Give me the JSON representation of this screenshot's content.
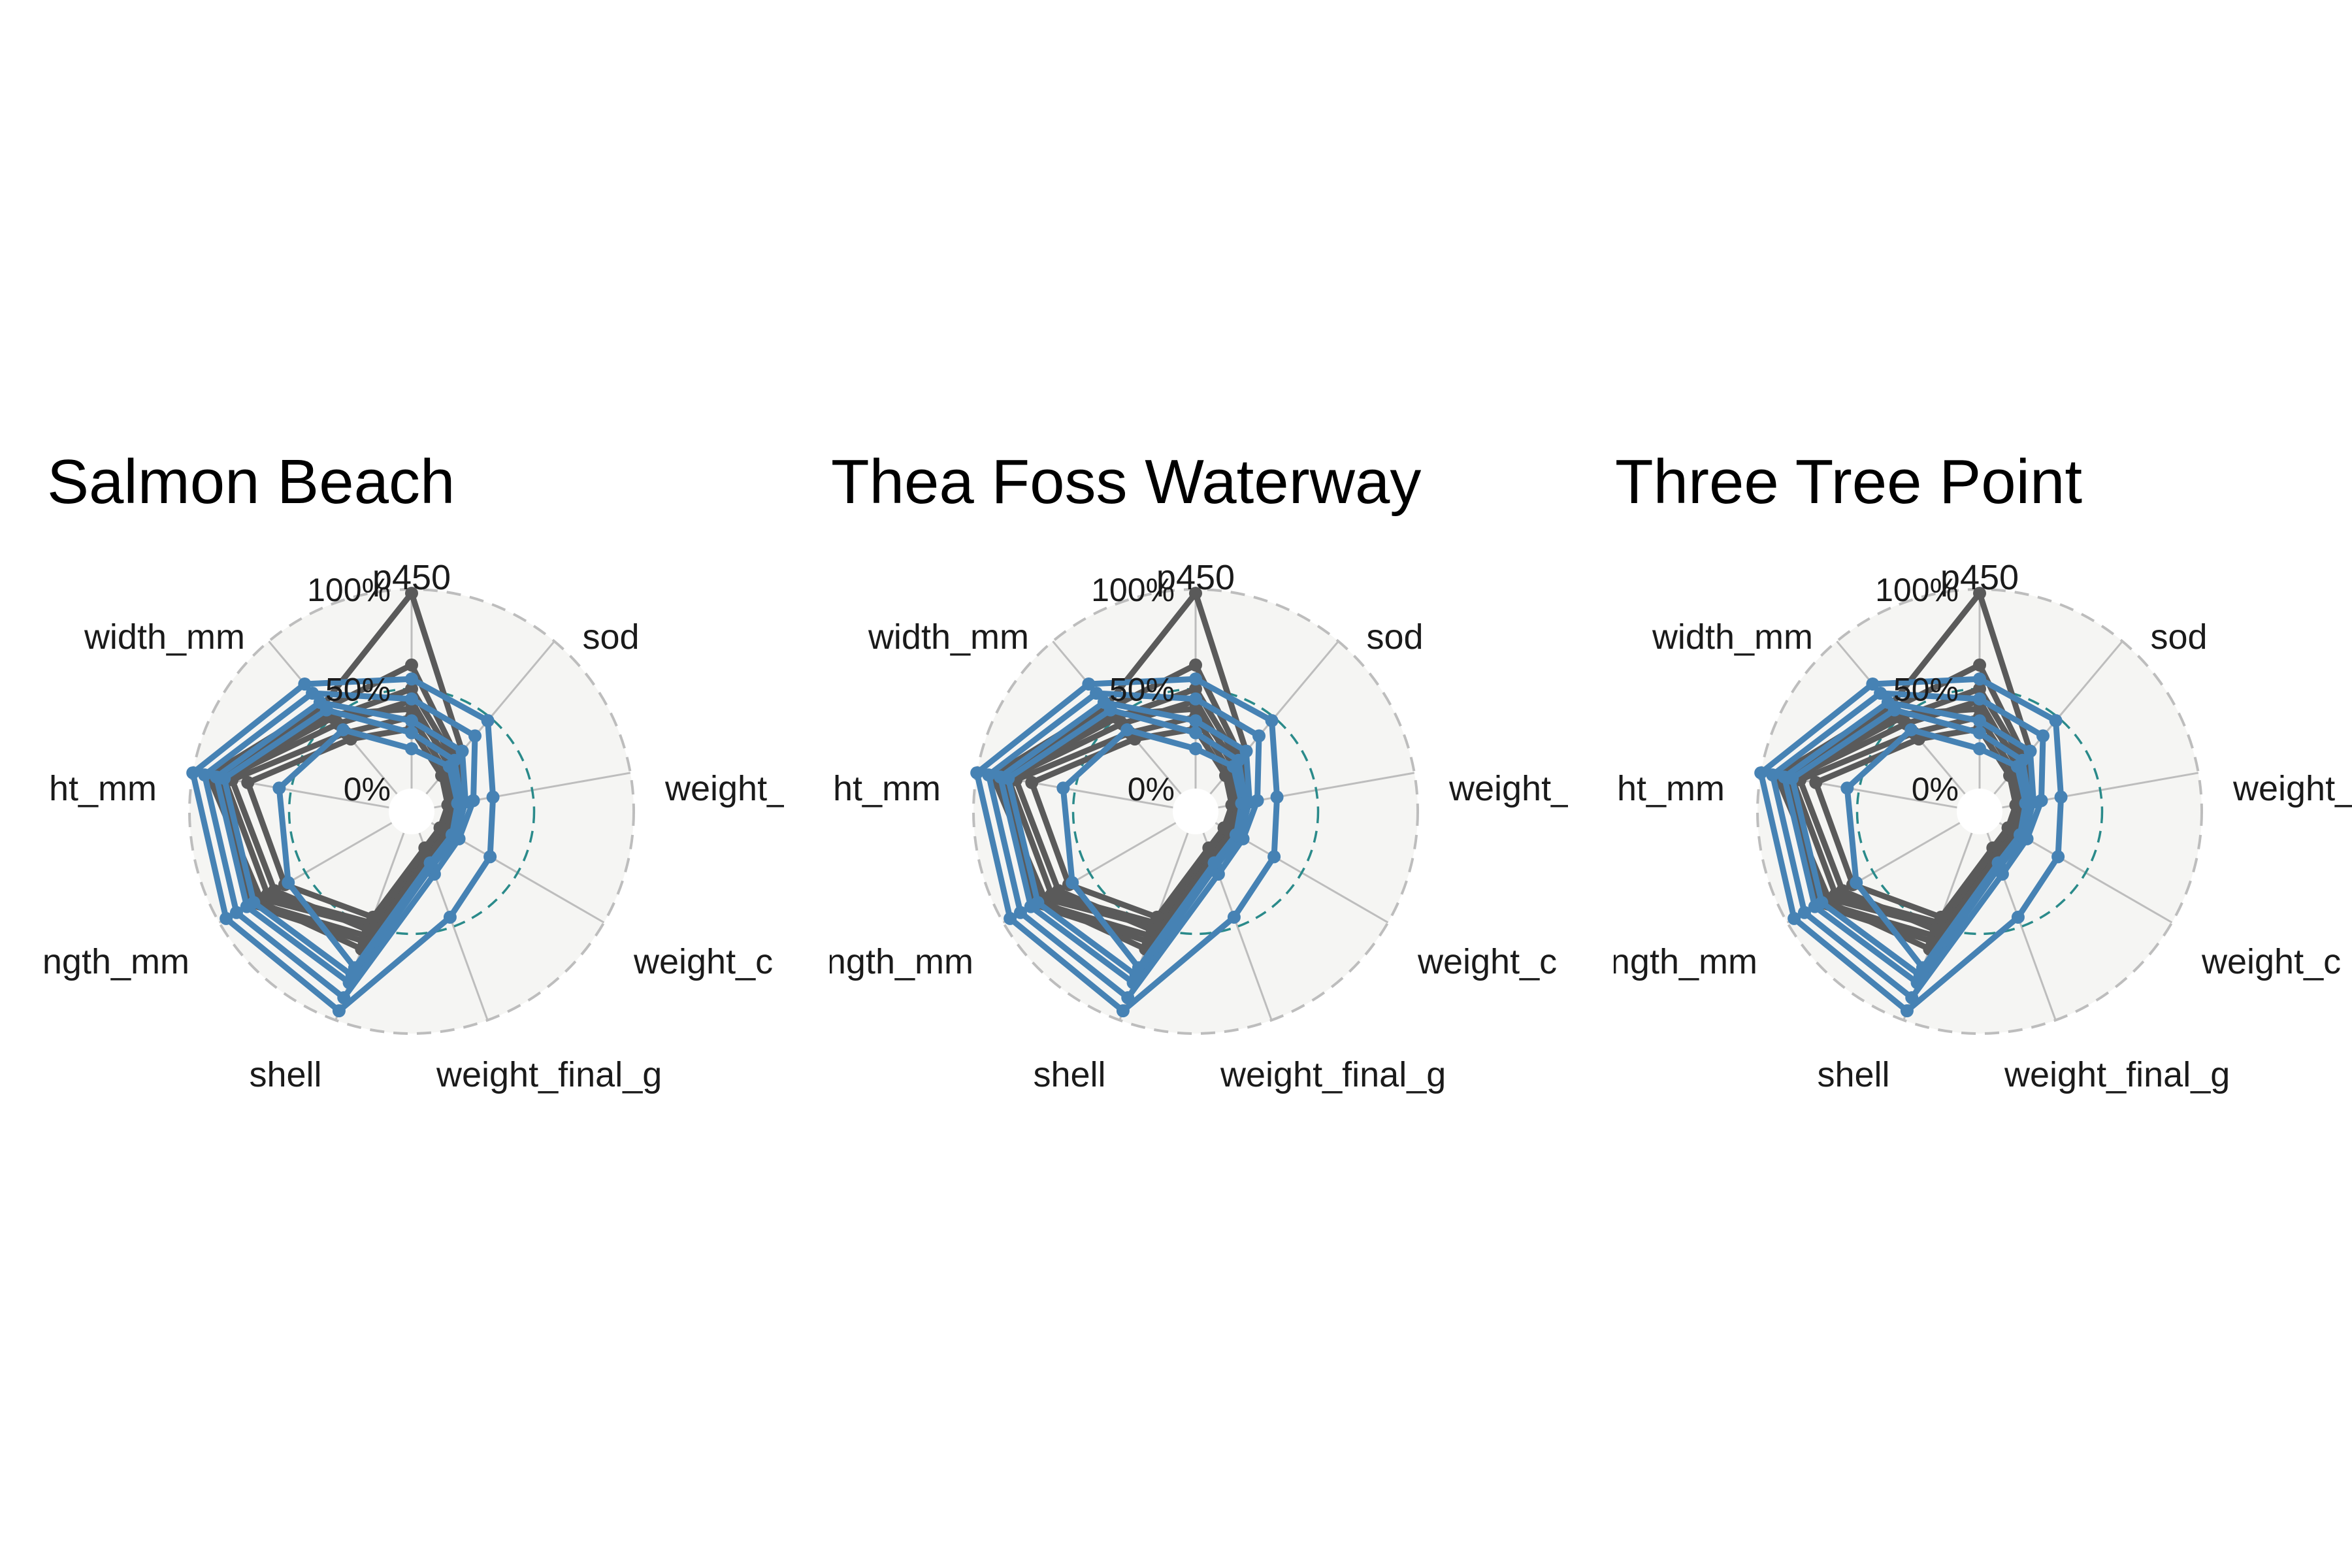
{
  "chart_data": [
    {
      "type": "radar",
      "title": "Salmon Beach",
      "axes": [
        "p450",
        "sod",
        "weight_",
        "weight_c",
        "weight_final_g",
        "shell",
        "ngth_mm",
        "ht_mm",
        "width_mm"
      ],
      "ring_labels": [
        "0%",
        "50%",
        "100%"
      ],
      "rlim": [
        0,
        100
      ],
      "reference_ring": 50,
      "colors": {
        "treated": "#4682b4",
        "control": "#5a5a5a",
        "reference": "#2a8a8a",
        "grid": "#bdbdbd",
        "background": "#f5f5f3"
      },
      "series": [
        {
          "group": "control",
          "values": [
            98,
            28,
            12,
            10,
            14,
            50,
            76,
            92,
            58
          ]
        },
        {
          "group": "control",
          "values": [
            62,
            24,
            14,
            12,
            18,
            58,
            82,
            88,
            56
          ]
        },
        {
          "group": "control",
          "values": [
            50,
            22,
            10,
            8,
            12,
            55,
            80,
            86,
            50
          ]
        },
        {
          "group": "control",
          "values": [
            44,
            18,
            9,
            7,
            10,
            48,
            72,
            84,
            46
          ]
        },
        {
          "group": "control",
          "values": [
            36,
            15,
            8,
            6,
            9,
            52,
            68,
            80,
            40
          ]
        },
        {
          "group": "control",
          "values": [
            30,
            12,
            7,
            5,
            8,
            45,
            62,
            72,
            36
          ]
        },
        {
          "group": "control",
          "values": [
            40,
            20,
            11,
            9,
            13,
            62,
            78,
            90,
            52
          ]
        },
        {
          "group": "treated",
          "values": [
            55,
            48,
            30,
            34,
            45,
            95,
            96,
            100,
            72
          ]
        },
        {
          "group": "treated",
          "values": [
            45,
            38,
            20,
            16,
            22,
            88,
            90,
            94,
            66
          ]
        },
        {
          "group": "treated",
          "values": [
            20,
            18,
            12,
            12,
            16,
            72,
            60,
            56,
            42
          ]
        },
        {
          "group": "treated",
          "values": [
            34,
            28,
            16,
            14,
            18,
            80,
            84,
            88,
            60
          ]
        },
        {
          "group": "treated",
          "values": [
            28,
            22,
            14,
            12,
            16,
            76,
            80,
            84,
            55
          ]
        }
      ]
    },
    {
      "type": "radar",
      "title": "Thea Foss Waterway",
      "axes": [
        "p450",
        "sod",
        "weight_",
        "weight_c",
        "weight_final_g",
        "shell",
        "ngth_mm",
        "ht_mm",
        "width_mm"
      ],
      "ring_labels": [
        "0%",
        "50%",
        "100%"
      ],
      "rlim": [
        0,
        100
      ],
      "reference_ring": 50,
      "colors": {
        "treated": "#4682b4",
        "control": "#5a5a5a",
        "reference": "#2a8a8a",
        "grid": "#bdbdbd",
        "background": "#f5f5f3"
      },
      "series": [
        {
          "group": "control",
          "values": [
            98,
            28,
            12,
            10,
            14,
            50,
            76,
            92,
            58
          ]
        },
        {
          "group": "control",
          "values": [
            62,
            24,
            14,
            12,
            18,
            58,
            82,
            88,
            56
          ]
        },
        {
          "group": "control",
          "values": [
            50,
            22,
            10,
            8,
            12,
            55,
            80,
            86,
            50
          ]
        },
        {
          "group": "control",
          "values": [
            44,
            18,
            9,
            7,
            10,
            48,
            72,
            84,
            46
          ]
        },
        {
          "group": "control",
          "values": [
            36,
            15,
            8,
            6,
            9,
            52,
            68,
            80,
            40
          ]
        },
        {
          "group": "control",
          "values": [
            30,
            12,
            7,
            5,
            8,
            45,
            62,
            72,
            36
          ]
        },
        {
          "group": "control",
          "values": [
            40,
            20,
            11,
            9,
            13,
            62,
            78,
            90,
            52
          ]
        },
        {
          "group": "treated",
          "values": [
            55,
            48,
            30,
            34,
            45,
            95,
            96,
            100,
            72
          ]
        },
        {
          "group": "treated",
          "values": [
            45,
            38,
            20,
            16,
            22,
            88,
            90,
            94,
            66
          ]
        },
        {
          "group": "treated",
          "values": [
            20,
            18,
            12,
            12,
            16,
            72,
            60,
            56,
            42
          ]
        },
        {
          "group": "treated",
          "values": [
            34,
            28,
            16,
            14,
            18,
            80,
            84,
            88,
            60
          ]
        },
        {
          "group": "treated",
          "values": [
            28,
            22,
            14,
            12,
            16,
            76,
            80,
            84,
            55
          ]
        }
      ]
    },
    {
      "type": "radar",
      "title": "Three Tree Point",
      "axes": [
        "p450",
        "sod",
        "weight_",
        "weight_c",
        "weight_final_g",
        "shell",
        "ngth_mm",
        "ht_mm",
        "width_mm"
      ],
      "ring_labels": [
        "0%",
        "50%",
        "100%"
      ],
      "rlim": [
        0,
        100
      ],
      "reference_ring": 50,
      "colors": {
        "treated": "#4682b4",
        "control": "#5a5a5a",
        "reference": "#2a8a8a",
        "grid": "#bdbdbd",
        "background": "#f5f5f3"
      },
      "series": [
        {
          "group": "control",
          "values": [
            98,
            28,
            12,
            10,
            14,
            50,
            76,
            92,
            58
          ]
        },
        {
          "group": "control",
          "values": [
            62,
            24,
            14,
            12,
            18,
            58,
            82,
            88,
            56
          ]
        },
        {
          "group": "control",
          "values": [
            50,
            22,
            10,
            8,
            12,
            55,
            80,
            86,
            50
          ]
        },
        {
          "group": "control",
          "values": [
            44,
            18,
            9,
            7,
            10,
            48,
            72,
            84,
            46
          ]
        },
        {
          "group": "control",
          "values": [
            36,
            15,
            8,
            6,
            9,
            52,
            68,
            80,
            40
          ]
        },
        {
          "group": "control",
          "values": [
            30,
            12,
            7,
            5,
            8,
            45,
            62,
            72,
            36
          ]
        },
        {
          "group": "control",
          "values": [
            40,
            20,
            11,
            9,
            13,
            62,
            78,
            90,
            52
          ]
        },
        {
          "group": "treated",
          "values": [
            55,
            48,
            30,
            34,
            45,
            95,
            96,
            100,
            72
          ]
        },
        {
          "group": "treated",
          "values": [
            45,
            38,
            20,
            16,
            22,
            88,
            90,
            94,
            66
          ]
        },
        {
          "group": "treated",
          "values": [
            20,
            18,
            12,
            12,
            16,
            72,
            60,
            56,
            42
          ]
        },
        {
          "group": "treated",
          "values": [
            34,
            28,
            16,
            14,
            18,
            80,
            84,
            88,
            60
          ]
        },
        {
          "group": "treated",
          "values": [
            28,
            22,
            14,
            12,
            16,
            76,
            80,
            84,
            55
          ]
        }
      ]
    }
  ]
}
